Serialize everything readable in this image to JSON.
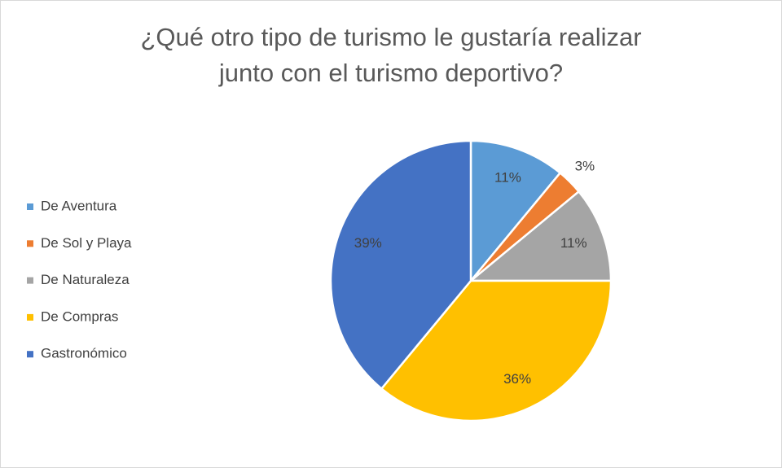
{
  "chart_data": {
    "type": "pie",
    "title": [
      "¿Qué otro tipo de turismo le gustaría realizar",
      "junto con el turismo deportivo?"
    ],
    "categories": [
      "De Aventura",
      "De Sol y Playa",
      "De Naturaleza",
      "De Compras",
      "Gastronómico"
    ],
    "values": [
      11,
      3,
      11,
      36,
      39
    ],
    "value_labels": [
      "11%",
      "3%",
      "11%",
      "36%",
      "39%"
    ],
    "colors": [
      "#5b9bd5",
      "#ed7d31",
      "#a5a5a5",
      "#ffc000",
      "#4472c4"
    ],
    "legend": "left"
  }
}
